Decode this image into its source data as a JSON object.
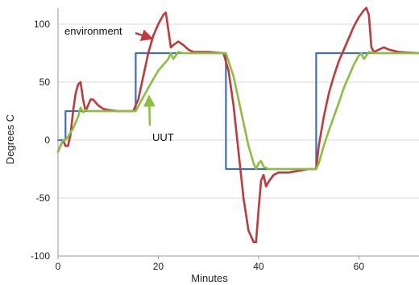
{
  "chart_data": {
    "type": "line",
    "title": "",
    "xlabel": "Minutes",
    "ylabel": "Degrees C",
    "xlim": [
      0,
      72
    ],
    "ylim": [
      -100,
      110
    ],
    "x_ticks": [
      0,
      20,
      40,
      60
    ],
    "y_ticks": [
      -100,
      -50,
      0,
      50,
      100
    ],
    "grid": "horizontal",
    "legend": "none",
    "series": [
      {
        "name": "",
        "color": "#3a6fc4",
        "points": [
          [
            0,
            0
          ],
          [
            1.5,
            0
          ],
          [
            1.5,
            25
          ],
          [
            15.5,
            25
          ],
          [
            15.5,
            75
          ],
          [
            33.5,
            75
          ],
          [
            33.5,
            -25
          ],
          [
            51.5,
            -25
          ],
          [
            51.5,
            75
          ],
          [
            72,
            75
          ]
        ]
      },
      {
        "name": "environment",
        "color": "#c0393b",
        "points": [
          [
            0,
            -10
          ],
          [
            0.5,
            -5
          ],
          [
            1,
            0
          ],
          [
            1.5,
            -5
          ],
          [
            2,
            -5
          ],
          [
            2.5,
            5
          ],
          [
            3,
            25
          ],
          [
            3.5,
            40
          ],
          [
            4,
            48
          ],
          [
            4.5,
            50
          ],
          [
            5,
            35
          ],
          [
            5.5,
            25
          ],
          [
            6,
            30
          ],
          [
            6.5,
            35
          ],
          [
            7,
            35
          ],
          [
            8,
            30
          ],
          [
            9,
            27
          ],
          [
            10,
            26
          ],
          [
            12,
            25
          ],
          [
            15,
            25
          ],
          [
            16,
            35
          ],
          [
            17,
            55
          ],
          [
            18,
            75
          ],
          [
            19,
            90
          ],
          [
            20,
            100
          ],
          [
            21,
            108
          ],
          [
            21.5,
            110
          ],
          [
            22,
            95
          ],
          [
            22.5,
            80
          ],
          [
            23,
            82
          ],
          [
            24,
            85
          ],
          [
            25,
            82
          ],
          [
            26,
            78
          ],
          [
            27,
            76
          ],
          [
            30,
            76
          ],
          [
            33,
            75
          ],
          [
            34,
            60
          ],
          [
            35,
            30
          ],
          [
            36,
            -10
          ],
          [
            37,
            -50
          ],
          [
            38,
            -78
          ],
          [
            39,
            -88
          ],
          [
            39.5,
            -88
          ],
          [
            40,
            -60
          ],
          [
            40.5,
            -35
          ],
          [
            41,
            -30
          ],
          [
            41.5,
            -40
          ],
          [
            42,
            -36
          ],
          [
            43,
            -30
          ],
          [
            44,
            -28
          ],
          [
            46,
            -28
          ],
          [
            50,
            -25
          ],
          [
            51.5,
            -25
          ],
          [
            52,
            -5
          ],
          [
            53,
            20
          ],
          [
            54,
            40
          ],
          [
            55,
            55
          ],
          [
            56,
            68
          ],
          [
            57,
            78
          ],
          [
            58,
            88
          ],
          [
            59,
            98
          ],
          [
            60,
            106
          ],
          [
            61,
            112
          ],
          [
            61.5,
            114
          ],
          [
            62,
            108
          ],
          [
            62.5,
            80
          ],
          [
            63,
            76
          ],
          [
            64,
            78
          ],
          [
            65,
            80
          ],
          [
            66,
            78
          ],
          [
            68,
            76
          ],
          [
            72,
            75
          ]
        ]
      },
      {
        "name": "UUT",
        "color": "#8cbf3f",
        "points": [
          [
            0,
            -10
          ],
          [
            0.5,
            -5
          ],
          [
            1,
            0
          ],
          [
            1.5,
            0
          ],
          [
            2,
            3
          ],
          [
            3,
            10
          ],
          [
            4,
            20
          ],
          [
            4.5,
            28
          ],
          [
            5,
            24
          ],
          [
            5.5,
            26
          ],
          [
            6,
            25
          ],
          [
            15,
            25
          ],
          [
            15.5,
            25
          ],
          [
            18,
            45
          ],
          [
            20,
            60
          ],
          [
            21,
            65
          ],
          [
            22,
            70
          ],
          [
            22.5,
            75
          ],
          [
            23,
            70
          ],
          [
            23.5,
            73
          ],
          [
            24,
            76
          ],
          [
            25,
            75
          ],
          [
            33.5,
            75
          ],
          [
            35,
            55
          ],
          [
            36,
            35
          ],
          [
            37,
            15
          ],
          [
            38,
            -5
          ],
          [
            39,
            -20
          ],
          [
            39.5,
            -25
          ],
          [
            40,
            -20
          ],
          [
            40.5,
            -18
          ],
          [
            41,
            -23
          ],
          [
            42,
            -25
          ],
          [
            51.5,
            -25
          ],
          [
            52,
            -20
          ],
          [
            53,
            -5
          ],
          [
            54,
            8
          ],
          [
            55,
            20
          ],
          [
            56,
            32
          ],
          [
            57,
            45
          ],
          [
            58,
            55
          ],
          [
            59,
            65
          ],
          [
            60,
            73
          ],
          [
            60.5,
            75
          ],
          [
            61,
            70
          ],
          [
            61.5,
            73
          ],
          [
            62,
            76
          ],
          [
            63,
            75
          ],
          [
            72,
            75
          ]
        ]
      }
    ],
    "annotations": [
      {
        "text": "environment",
        "color": "#111111",
        "arrow_color": "#c0393b"
      },
      {
        "text": "UUT",
        "color": "#111111",
        "arrow_color": "#8cbf3f"
      }
    ]
  }
}
